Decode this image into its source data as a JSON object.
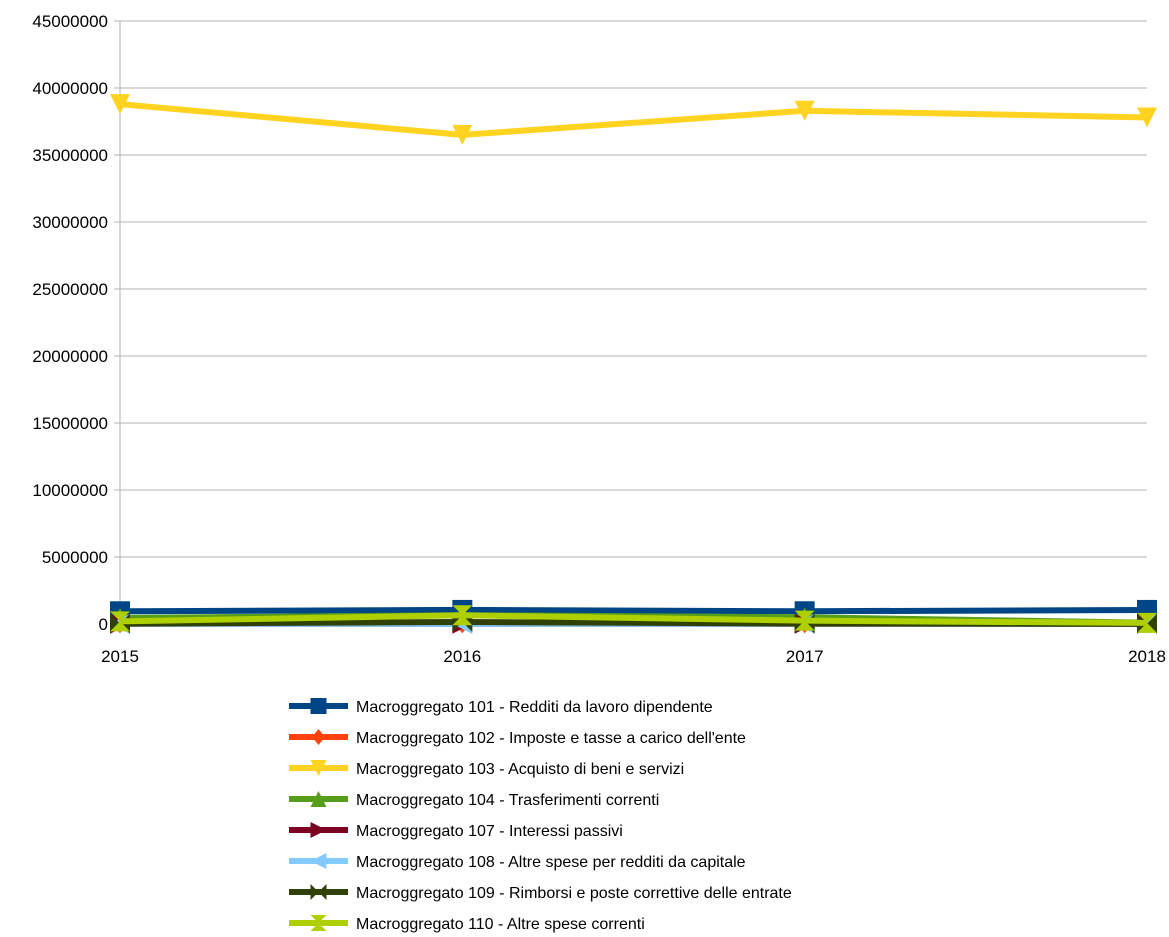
{
  "chart_data": {
    "type": "line",
    "title": "",
    "xlabel": "",
    "ylabel": "",
    "categories": [
      "2015",
      "2016",
      "2017",
      "2018"
    ],
    "ylim": [
      0,
      45000000
    ],
    "yticks": [
      0,
      5000000,
      10000000,
      15000000,
      20000000,
      25000000,
      30000000,
      35000000,
      40000000,
      45000000
    ],
    "grid": "horizontal",
    "legend_position": "bottom",
    "series": [
      {
        "name": "Macroggregato 101 - Redditi da lavoro dipendente",
        "values": [
          950000,
          1050000,
          950000,
          1050000
        ],
        "color": "#004586",
        "marker": "square"
      },
      {
        "name": "Macroggregato 102 - Imposte e tasse a carico dell'ente",
        "values": [
          60000,
          60000,
          60000,
          60000
        ],
        "color": "#ff420e",
        "marker": "diamond"
      },
      {
        "name": "Macroggregato 103 - Acquisto di beni e servizi",
        "values": [
          38800000,
          36500000,
          38300000,
          37800000
        ],
        "color": "#ffd320",
        "marker": "triangle-down"
      },
      {
        "name": "Macroggregato 104 - Trasferimenti correnti",
        "values": [
          450000,
          650000,
          500000,
          100000
        ],
        "color": "#579d1c",
        "marker": "triangle-up"
      },
      {
        "name": "Macroggregato 107 - Interessi passivi",
        "values": [
          20000,
          20000,
          20000,
          20000
        ],
        "color": "#7e0021",
        "marker": "triangle-right"
      },
      {
        "name": "Macroggregato 108 - Altre spese per redditi da capitale",
        "values": [
          5000,
          5000,
          5000,
          5000
        ],
        "color": "#83caff",
        "marker": "triangle-left"
      },
      {
        "name": "Macroggregato 109 - Rimborsi e poste correttive delle entrate",
        "values": [
          30000,
          150000,
          30000,
          10000
        ],
        "color": "#314004",
        "marker": "bowtie"
      },
      {
        "name": "Macroggregato 110 - Altre spese correnti",
        "values": [
          200000,
          650000,
          250000,
          80000
        ],
        "color": "#aecf00",
        "marker": "hourglass"
      }
    ]
  }
}
